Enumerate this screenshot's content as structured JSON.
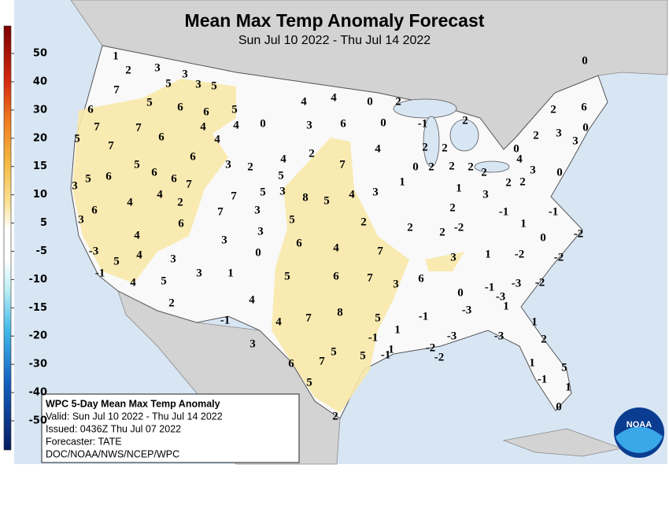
{
  "header": {
    "title": "Mean Max Temp Anomaly Forecast",
    "subtitle": "Sun Jul 10 2022 - Thu Jul 14 2022"
  },
  "colorbar": {
    "labels": [
      50,
      40,
      30,
      20,
      15,
      10,
      5,
      -5,
      -10,
      -15,
      -20,
      -30,
      -40,
      -50
    ]
  },
  "map_values": [
    1,
    2,
    3,
    3,
    5,
    3,
    5,
    7,
    5,
    6,
    6,
    5,
    4,
    4,
    0,
    2,
    6,
    7,
    7,
    6,
    4,
    4,
    0,
    3,
    6,
    0,
    -1,
    2,
    5,
    7,
    4,
    4,
    2,
    2,
    0,
    2,
    3,
    0,
    3,
    2,
    6,
    0,
    6,
    5,
    6,
    3,
    2,
    4,
    2,
    7,
    4,
    3,
    0,
    2,
    2,
    2,
    2,
    2,
    3,
    5,
    6,
    6,
    7,
    5,
    1,
    1,
    3,
    2,
    0,
    4,
    4,
    2,
    7,
    5,
    3,
    8,
    5,
    4,
    3,
    6,
    7,
    3,
    6,
    5,
    2,
    2,
    -1,
    -1,
    3,
    3,
    4,
    3,
    2,
    2,
    -2,
    1,
    0,
    -2,
    6,
    4,
    7,
    -3,
    4,
    0,
    5,
    3,
    3,
    1,
    -2,
    -2,
    -1,
    3,
    1,
    5,
    6,
    7,
    3,
    6,
    4,
    5,
    0,
    -1,
    -3,
    -3,
    -2,
    4,
    2,
    -3,
    1,
    4,
    7,
    8,
    5,
    -1,
    1,
    -1,
    -3,
    -3,
    1,
    3,
    -1,
    1,
    -2,
    2,
    5,
    7,
    6,
    5,
    -1,
    -2,
    1,
    5,
    5,
    -1,
    1,
    0,
    2
  ],
  "info_box": {
    "lines": [
      "WPC 5-Day Mean Max Temp Anomaly",
      "Valid: Sun Jul 10 2022 - Thu Jul 14 2022",
      "Issued: 0436Z Thu Jul 07 2022",
      "Forecaster: TATE",
      "DOC/NOAA/NWS/NCEP/WPC"
    ]
  },
  "logo": {
    "text": "NOAA"
  }
}
